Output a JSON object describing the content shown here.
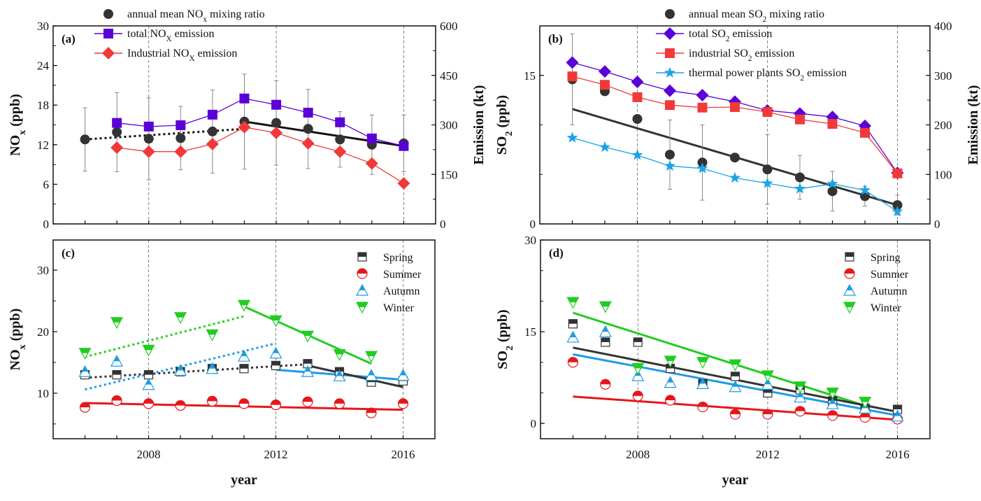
{
  "chart_data": [
    {
      "id": "a",
      "type": "line",
      "panel_label": "(a)",
      "x": [
        2006,
        2007,
        2008,
        2009,
        2010,
        2011,
        2012,
        2013,
        2014,
        2015,
        2016
      ],
      "xticks": [
        "2008",
        "2012",
        "2016"
      ],
      "ylabel": "NOx (ppb)",
      "ylabel_main": "NO",
      "ylabel_sub": "x",
      "ylabel_tail": " (ppb)",
      "ylim": [
        0,
        30
      ],
      "yticks": [
        "0",
        "6",
        "12",
        "18",
        "24",
        "30"
      ],
      "y2label": "Emission (kt)",
      "y2lim": [
        0,
        600
      ],
      "y2ticks": [
        "0",
        "150",
        "300",
        "450",
        "600"
      ],
      "grid": "dashed vertical at 2008, 2012, 2016",
      "legend": "top",
      "series": [
        {
          "name": "annual mean NOx mixing ratio",
          "legend_main": "annual mean NO",
          "legend_sub": "x",
          "legend_tail": " mixing ratio",
          "axis": "left",
          "marker": "circle",
          "color": "#333333",
          "values": [
            12.8,
            13.9,
            12.9,
            13.0,
            14.0,
            15.5,
            15.3,
            14.4,
            12.8,
            12.0,
            12.2
          ],
          "err": [
            4.8,
            6.0,
            6.2,
            4.8,
            6.3,
            7.2,
            6.4,
            6.0,
            4.2,
            4.5,
            4.3
          ]
        },
        {
          "name": "total NOX emission",
          "legend_main": "total NO",
          "legend_sub": "X",
          "legend_tail": " emission",
          "axis": "right",
          "marker": "square",
          "color": "#5B00D6",
          "values": [
            null,
            306,
            295,
            299,
            331,
            380,
            361,
            337,
            308,
            259,
            236
          ]
        },
        {
          "name": "Industrial NOX emission",
          "legend_main": "Industrial NO",
          "legend_sub": "X",
          "legend_tail": " emission",
          "axis": "right",
          "marker": "diamond",
          "color": "#F03A3A",
          "values": [
            null,
            231,
            219,
            219,
            242,
            293,
            276,
            244,
            219,
            183,
            123
          ]
        }
      ],
      "trendlines": [
        {
          "style": "dotted",
          "color": "#111111",
          "from": [
            2006,
            12.8
          ],
          "to": [
            2011,
            14.4
          ]
        },
        {
          "style": "solid",
          "color": "#111111",
          "from": [
            2011,
            15.5
          ],
          "to": [
            2016,
            11.8
          ]
        }
      ]
    },
    {
      "id": "b",
      "type": "line",
      "panel_label": "(b)",
      "x": [
        2006,
        2007,
        2008,
        2009,
        2010,
        2011,
        2012,
        2013,
        2014,
        2015,
        2016
      ],
      "xticks": [
        "2008",
        "2012",
        "2016"
      ],
      "ylabel": "SO2 (ppb)",
      "ylabel_main": "SO",
      "ylabel_sub": "2",
      "ylabel_tail": " (ppb)",
      "ylim": [
        0,
        20
      ],
      "yticks": [
        "0",
        "15"
      ],
      "y2label": "Emission (kt)",
      "y2lim": [
        0,
        400
      ],
      "y2ticks": [
        "0",
        "100",
        "200",
        "300",
        "400"
      ],
      "grid": "dashed vertical at 2008, 2012, 2016",
      "legend": "top",
      "series": [
        {
          "name": "annual mean SO2 mixing ratio",
          "legend_main": "annual mean SO",
          "legend_sub": "2",
          "legend_tail": " mixing ratio",
          "axis": "left",
          "marker": "circle",
          "color": "#333333",
          "values": [
            14.6,
            13.4,
            10.6,
            7.0,
            6.2,
            6.7,
            5.5,
            4.7,
            3.3,
            2.8,
            1.9
          ],
          "err": [
            4.6,
            0,
            0,
            3.5,
            3.8,
            0,
            3.5,
            2.2,
            2.0,
            1.0,
            1.0
          ]
        },
        {
          "name": "total SO2 emission",
          "legend_main": "total SO",
          "legend_sub": "2",
          "legend_tail": " emission",
          "axis": "right",
          "marker": "diamond",
          "color": "#5B00D6",
          "values": [
            326,
            308,
            287,
            269,
            260,
            247,
            229,
            223,
            216,
            198,
            103
          ]
        },
        {
          "name": "industrial SO2 emission",
          "legend_main": "industrial SO",
          "legend_sub": "2",
          "legend_tail": " emission",
          "axis": "right",
          "marker": "square",
          "color": "#F03A3A",
          "values": [
            298,
            281,
            256,
            240,
            235,
            236,
            226,
            211,
            202,
            184,
            102
          ]
        },
        {
          "name": "thermal power plants SO2 emission",
          "legend_main": "thermal power plants SO",
          "legend_sub": "2",
          "legend_tail": " emission",
          "axis": "right",
          "marker": "star",
          "color": "#1AA3E8",
          "values": [
            174,
            155,
            139,
            117,
            112,
            93,
            82,
            71,
            81,
            68,
            25
          ]
        }
      ],
      "trendlines": [
        {
          "style": "solid",
          "color": "#333333",
          "from": [
            2006,
            11.6
          ],
          "to": [
            2016,
            1.9
          ]
        }
      ]
    },
    {
      "id": "c",
      "type": "scatter",
      "panel_label": "(c)",
      "x": [
        2006,
        2007,
        2008,
        2009,
        2010,
        2011,
        2012,
        2013,
        2014,
        2015,
        2016
      ],
      "xticks": [
        "2008",
        "2012",
        "2016"
      ],
      "xlabel": "year",
      "ylabel": "NOx (ppb)",
      "ylabel_main": "NO",
      "ylabel_sub": "x",
      "ylabel_tail": " (ppb)",
      "ylim": [
        2.6,
        34.9
      ],
      "yticks": [
        "10",
        "20",
        "30"
      ],
      "grid": "dashed vertical at 2008, 2012, 2016",
      "legend": "top-right",
      "series": [
        {
          "name": "Spring",
          "marker": "half-square",
          "color": "#333333",
          "values": [
            13.0,
            13.0,
            13.0,
            13.5,
            14.0,
            14.0,
            14.5,
            14.8,
            13.5,
            11.8,
            12.0
          ]
        },
        {
          "name": "Summer",
          "marker": "half-circle",
          "color": "#E8161B",
          "values": [
            7.7,
            8.8,
            8.3,
            8.0,
            8.7,
            8.3,
            8.1,
            8.6,
            8.3,
            6.8,
            8.3
          ]
        },
        {
          "name": "Autumn",
          "marker": "half-triangle-up",
          "color": "#1E9BE6",
          "values": [
            13.5,
            15.2,
            11.4,
            13.7,
            14.0,
            16.0,
            16.5,
            13.5,
            12.8,
            12.9,
            12.9
          ]
        },
        {
          "name": "Winter",
          "marker": "half-triangle-down",
          "color": "#22CC22",
          "values": [
            16.5,
            21.5,
            17.0,
            22.3,
            19.5,
            24.3,
            21.8,
            19.3,
            16.3,
            16.0,
            null
          ]
        }
      ],
      "trendlines": [
        {
          "style": "dotted",
          "color": "#22CC22",
          "from": [
            2006,
            15.9
          ],
          "to": [
            2011,
            22.5
          ]
        },
        {
          "style": "solid",
          "color": "#22CC22",
          "from": [
            2011,
            24.1
          ],
          "to": [
            2015,
            14.8
          ]
        },
        {
          "style": "dotted",
          "color": "#1E9BE6",
          "from": [
            2006,
            10.6
          ],
          "to": [
            2012,
            18.1
          ]
        },
        {
          "style": "solid",
          "color": "#1E9BE6",
          "from": [
            2012,
            13.8
          ],
          "to": [
            2016,
            12.2
          ]
        },
        {
          "style": "dotted",
          "color": "#333333",
          "from": [
            2006,
            12.5
          ],
          "to": [
            2013,
            14.7
          ]
        },
        {
          "style": "solid",
          "color": "#333333",
          "from": [
            2013,
            14.5
          ],
          "to": [
            2016,
            11.0
          ]
        },
        {
          "style": "solid",
          "color": "#E8161B",
          "from": [
            2006,
            8.4
          ],
          "to": [
            2016,
            7.3
          ]
        }
      ]
    },
    {
      "id": "d",
      "type": "scatter",
      "panel_label": "(d)",
      "x": [
        2006,
        2007,
        2008,
        2009,
        2010,
        2011,
        2012,
        2013,
        2014,
        2015,
        2016
      ],
      "xticks": [
        "2008",
        "2012",
        "2016"
      ],
      "xlabel": "year",
      "ylabel": "SO2 (ppb)",
      "ylabel_main": "SO",
      "ylabel_sub": "2",
      "ylabel_tail": " (ppb)",
      "ylim": [
        -2.5,
        30
      ],
      "yticks": [
        "0",
        "15",
        "30"
      ],
      "grid": "dashed vertical at 2008, 2012, 2016",
      "legend": "top-right",
      "series": [
        {
          "name": "Spring",
          "marker": "half-square",
          "color": "#333333",
          "values": [
            16.3,
            13.3,
            13.3,
            9.0,
            6.5,
            7.7,
            5.0,
            5.5,
            3.7,
            2.5,
            2.3
          ]
        },
        {
          "name": "Summer",
          "marker": "half-circle",
          "color": "#E8161B",
          "values": [
            10.0,
            6.4,
            4.5,
            3.8,
            2.7,
            1.5,
            1.5,
            2.0,
            1.3,
            1.0,
            0.7
          ]
        },
        {
          "name": "Autumn",
          "marker": "half-triangle-up",
          "color": "#1E9BE6",
          "values": [
            14.1,
            15.0,
            7.8,
            6.7,
            6.5,
            6.0,
            6.4,
            4.3,
            3.2,
            2.5,
            1.2
          ]
        },
        {
          "name": "Winter",
          "marker": "half-triangle-down",
          "color": "#22CC22",
          "values": [
            19.8,
            19.1,
            9.0,
            10.2,
            10.0,
            9.6,
            7.8,
            6.0,
            5.0,
            3.5,
            null
          ]
        }
      ],
      "trendlines": [
        {
          "style": "solid",
          "color": "#22CC22",
          "from": [
            2006,
            18.1
          ],
          "to": [
            2015,
            2.9
          ]
        },
        {
          "style": "solid",
          "color": "#333333",
          "from": [
            2006,
            12.4
          ],
          "to": [
            2016,
            1.9
          ]
        },
        {
          "style": "solid",
          "color": "#1E9BE6",
          "from": [
            2006,
            11.3
          ],
          "to": [
            2016,
            1.3
          ]
        },
        {
          "style": "solid",
          "color": "#E8161B",
          "from": [
            2006,
            4.4
          ],
          "to": [
            2016,
            0.6
          ]
        }
      ]
    }
  ]
}
